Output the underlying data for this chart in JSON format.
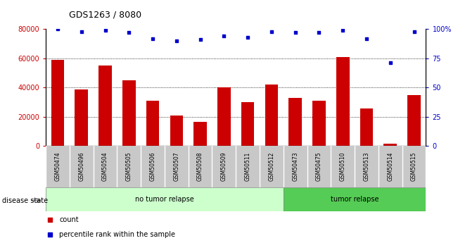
{
  "title": "GDS1263 / 8080",
  "samples": [
    "GSM50474",
    "GSM50496",
    "GSM50504",
    "GSM50505",
    "GSM50506",
    "GSM50507",
    "GSM50508",
    "GSM50509",
    "GSM50511",
    "GSM50512",
    "GSM50473",
    "GSM50475",
    "GSM50510",
    "GSM50513",
    "GSM50514",
    "GSM50515"
  ],
  "counts": [
    59000,
    38500,
    55000,
    45000,
    31000,
    21000,
    16500,
    40000,
    30000,
    42000,
    33000,
    31000,
    61000,
    25500,
    1500,
    35000
  ],
  "percentiles": [
    100,
    98,
    99,
    97,
    92,
    90,
    91,
    94,
    93,
    98,
    97,
    97,
    99,
    92,
    71,
    98
  ],
  "group1_label": "no tumor relapse",
  "group2_label": "tumor relapse",
  "group1_count": 10,
  "group2_count": 6,
  "disease_state_label": "disease state",
  "legend_count_label": "count",
  "legend_percentile_label": "percentile rank within the sample",
  "bar_color": "#cc0000",
  "dot_color": "#0000cc",
  "group1_bg": "#ccffcc",
  "group2_bg": "#55cc55",
  "xticklabel_bg": "#c8c8c8",
  "ylim_left": [
    0,
    80000
  ],
  "ylim_right": [
    0,
    100
  ],
  "yticks_left": [
    0,
    20000,
    40000,
    60000,
    80000
  ],
  "yticks_right": [
    0,
    25,
    50,
    75,
    100
  ],
  "ytick_labels_left": [
    "0",
    "20000",
    "40000",
    "60000",
    "80000"
  ],
  "ytick_labels_right": [
    "0",
    "25",
    "50",
    "75",
    "100%"
  ]
}
